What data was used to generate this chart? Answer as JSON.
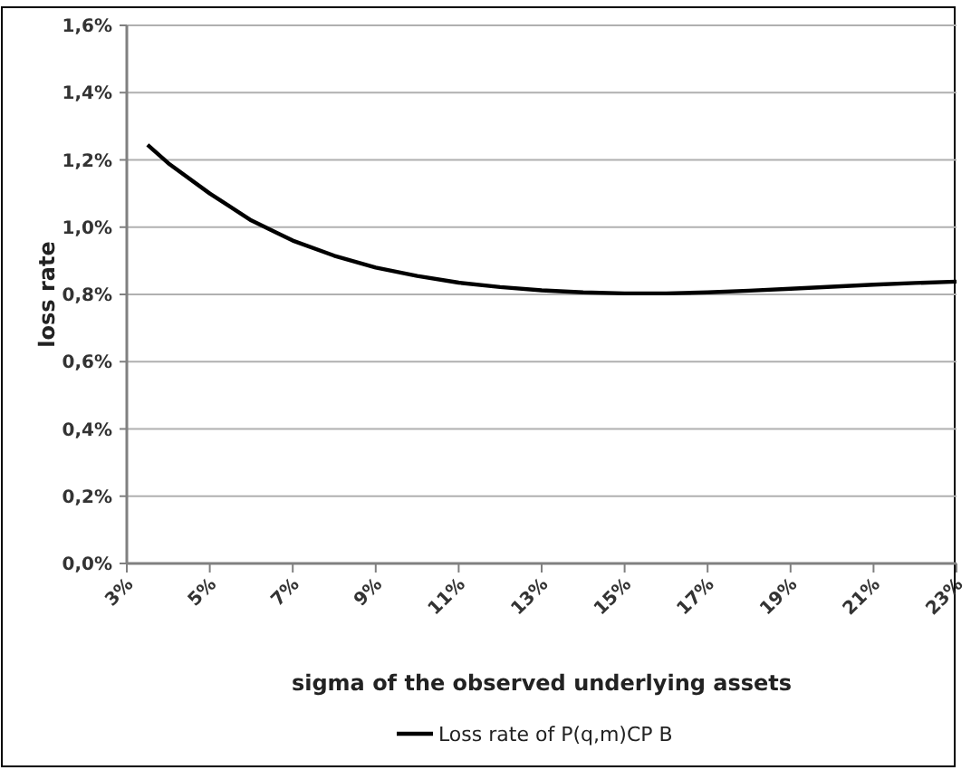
{
  "chart_data": {
    "type": "line",
    "xlabel": "sigma of the observed  underlying assets",
    "ylabel": "loss rate",
    "x": [
      3.5,
      4,
      5,
      6,
      7,
      8,
      9,
      10,
      11,
      12,
      13,
      14,
      15,
      16,
      17,
      18,
      19,
      20,
      21,
      22,
      23
    ],
    "series": [
      {
        "name": "Loss rate of P(q,m)CP B",
        "color": "#000000",
        "values": [
          1.245,
          1.19,
          1.1,
          1.02,
          0.96,
          0.915,
          0.88,
          0.855,
          0.835,
          0.822,
          0.812,
          0.806,
          0.803,
          0.803,
          0.806,
          0.811,
          0.817,
          0.823,
          0.829,
          0.834,
          0.838
        ]
      }
    ],
    "xlim": [
      3,
      23
    ],
    "xticks": [
      {
        "value": 3,
        "label": "3%"
      },
      {
        "value": 5,
        "label": "5%"
      },
      {
        "value": 7,
        "label": "7%"
      },
      {
        "value": 9,
        "label": "9%"
      },
      {
        "value": 11,
        "label": "11%"
      },
      {
        "value": 13,
        "label": "13%"
      },
      {
        "value": 15,
        "label": "15%"
      },
      {
        "value": 17,
        "label": "17%"
      },
      {
        "value": 19,
        "label": "19%"
      },
      {
        "value": 21,
        "label": "21%"
      },
      {
        "value": 23,
        "label": "23%"
      }
    ],
    "ylim": [
      0,
      1.6
    ],
    "yticks": [
      {
        "value": 0,
        "label": "0,0%"
      },
      {
        "value": 0.2,
        "label": "0,2%"
      },
      {
        "value": 0.4,
        "label": "0,4%"
      },
      {
        "value": 0.6,
        "label": "0,6%"
      },
      {
        "value": 0.8,
        "label": "0,8%"
      },
      {
        "value": 1.0,
        "label": "1,0%"
      },
      {
        "value": 1.2,
        "label": "1,2%"
      },
      {
        "value": 1.4,
        "label": "1,4%"
      },
      {
        "value": 1.6,
        "label": "1,6%"
      }
    ],
    "grid": "y",
    "legend": "bottom",
    "marker": "none",
    "line_style": "solid"
  }
}
